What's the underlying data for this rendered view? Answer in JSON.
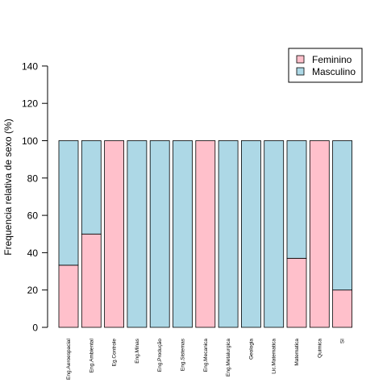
{
  "chart_data": {
    "type": "bar",
    "stacked": true,
    "ylabel": "Frequencia relativa de sexo (%)",
    "xlabel": "",
    "ylim": [
      0,
      140
    ],
    "yticks": [
      0,
      20,
      40,
      60,
      80,
      100,
      120,
      140
    ],
    "categories": [
      "Eng.Aeroespacial",
      "Eng.Ambiental",
      "Eg.Controle",
      "Eng.Minas",
      "Eng.Produção",
      "Eng.Sistemas",
      "Eng.Mecanica",
      "Eng.Metalurgica",
      "Geologia",
      "Lic.Matematica",
      "Matematica",
      "Quimica",
      "SI"
    ],
    "series": [
      {
        "name": "Feminino",
        "color": "#ffc0cb",
        "values": [
          33.3,
          50,
          100,
          0,
          0,
          0,
          100,
          0,
          0,
          0,
          37,
          100,
          20
        ]
      },
      {
        "name": "Masculino",
        "color": "#add8e6",
        "values": [
          66.7,
          50,
          0,
          100,
          100,
          100,
          0,
          100,
          100,
          100,
          63,
          0,
          80
        ]
      }
    ],
    "legend_position": "top-right",
    "grid": false
  }
}
